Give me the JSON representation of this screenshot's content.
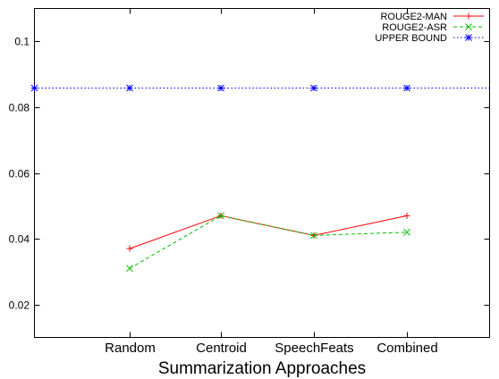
{
  "chart_data": {
    "type": "line",
    "title": "",
    "xlabel": "Summarization Approaches",
    "ylabel": "",
    "categories": [
      "Random",
      "Centroid",
      "SpeechFeats",
      "Combined"
    ],
    "ylim": [
      0.01,
      0.11
    ],
    "yticks": [
      0.02,
      0.04,
      0.06,
      0.08,
      0.1
    ],
    "ytick_labels": [
      "0.02",
      "0.04",
      "0.06",
      "0.08",
      "0.1"
    ],
    "grid": false,
    "legend_position": "top-right",
    "series": [
      {
        "name": "ROUGE2-MAN",
        "values": [
          0.037,
          0.047,
          0.041,
          0.047
        ],
        "color": "#ff0000",
        "dash": "solid",
        "marker": "plus"
      },
      {
        "name": "ROUGE2-ASR",
        "values": [
          0.031,
          0.047,
          0.041,
          0.042
        ],
        "color": "#00c000",
        "dash": "dashed",
        "marker": "x"
      },
      {
        "name": "UPPER BOUND",
        "values": [
          0.086,
          0.086,
          0.086,
          0.086
        ],
        "color": "#0000ff",
        "dash": "dotted",
        "marker": "star",
        "spans_full_axis": true
      }
    ]
  }
}
